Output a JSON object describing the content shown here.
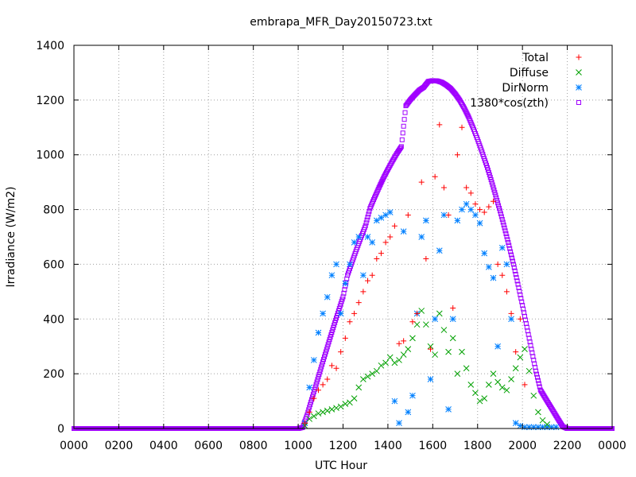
{
  "chart_data": {
    "type": "scatter",
    "title": "embrapa_MFR_Day20150723.txt",
    "xlabel": "UTC Hour",
    "ylabel": "Irradiance (W/m2)",
    "xlim": [
      0,
      24
    ],
    "ylim": [
      0,
      1400
    ],
    "x_tick_values": [
      0,
      2,
      4,
      6,
      8,
      10,
      12,
      14,
      16,
      18,
      20,
      22,
      24
    ],
    "x_tick_labels": [
      "0000",
      "0200",
      "0400",
      "0600",
      "0800",
      "1000",
      "1200",
      "1400",
      "1600",
      "1800",
      "2000",
      "2200",
      "0000"
    ],
    "y_ticks": [
      0,
      200,
      400,
      600,
      800,
      1000,
      1200,
      1400
    ],
    "grid": true,
    "legend_position": "top-right",
    "series": [
      {
        "name": "Total",
        "color": "#ff0000",
        "marker": "plus",
        "x": [
          10.3,
          10.5,
          10.7,
          10.9,
          11.1,
          11.3,
          11.5,
          11.7,
          11.9,
          12.1,
          12.3,
          12.5,
          12.7,
          12.9,
          13.1,
          13.3,
          13.5,
          13.7,
          13.9,
          14.1,
          14.3,
          14.5,
          14.7,
          14.9,
          15.1,
          15.3,
          15.5,
          15.7,
          15.9,
          16.1,
          16.3,
          16.5,
          16.7,
          16.9,
          17.1,
          17.3,
          17.5,
          17.7,
          17.9,
          18.1,
          18.3,
          18.5,
          18.7,
          18.9,
          19.1,
          19.3,
          19.5,
          19.7,
          19.9,
          20.1
        ],
        "y": [
          20,
          60,
          110,
          140,
          160,
          180,
          230,
          220,
          280,
          330,
          390,
          420,
          460,
          500,
          540,
          560,
          620,
          640,
          680,
          700,
          740,
          310,
          320,
          780,
          390,
          420,
          900,
          620,
          290,
          920,
          1110,
          880,
          780,
          440,
          1000,
          1100,
          880,
          860,
          820,
          800,
          790,
          810,
          830,
          600,
          560,
          500,
          420,
          280,
          400,
          160
        ]
      },
      {
        "name": "Diffuse",
        "color": "#00a000",
        "marker": "x",
        "x": [
          10.3,
          10.5,
          10.7,
          10.9,
          11.1,
          11.3,
          11.5,
          11.7,
          11.9,
          12.1,
          12.3,
          12.5,
          12.7,
          12.9,
          13.1,
          13.3,
          13.5,
          13.7,
          13.9,
          14.1,
          14.3,
          14.5,
          14.7,
          14.9,
          15.1,
          15.3,
          15.5,
          15.7,
          15.9,
          16.1,
          16.3,
          16.5,
          16.7,
          16.9,
          17.1,
          17.3,
          17.5,
          17.7,
          17.9,
          18.1,
          18.3,
          18.5,
          18.7,
          18.9,
          19.1,
          19.3,
          19.5,
          19.7,
          19.9,
          20.1,
          20.3,
          20.5,
          20.7,
          20.9,
          21.1
        ],
        "y": [
          10,
          35,
          45,
          55,
          60,
          65,
          70,
          75,
          80,
          90,
          95,
          110,
          150,
          180,
          190,
          200,
          210,
          230,
          240,
          260,
          240,
          250,
          270,
          290,
          330,
          380,
          430,
          380,
          300,
          270,
          420,
          360,
          280,
          330,
          200,
          280,
          220,
          160,
          130,
          100,
          110,
          160,
          200,
          170,
          150,
          140,
          180,
          220,
          260,
          290,
          210,
          120,
          60,
          30,
          15
        ]
      },
      {
        "name": "DirNorm",
        "color": "#0080ff",
        "marker": "star",
        "x": [
          10.3,
          10.5,
          10.7,
          10.9,
          11.1,
          11.3,
          11.5,
          11.7,
          11.9,
          12.1,
          12.3,
          12.5,
          12.7,
          12.9,
          13.1,
          13.3,
          13.5,
          13.7,
          13.9,
          14.1,
          14.3,
          14.5,
          14.7,
          14.9,
          15.1,
          15.3,
          15.5,
          15.7,
          15.9,
          16.1,
          16.3,
          16.5,
          16.7,
          16.9,
          17.1,
          17.3,
          17.5,
          17.7,
          17.9,
          18.1,
          18.3,
          18.5,
          18.7,
          18.9,
          19.1,
          19.3,
          19.5,
          19.7,
          19.9,
          20.1,
          20.3,
          20.5,
          20.7,
          20.9,
          21.1,
          21.3,
          21.5
        ],
        "y": [
          20,
          150,
          250,
          350,
          420,
          480,
          560,
          600,
          420,
          530,
          600,
          680,
          700,
          560,
          700,
          680,
          760,
          770,
          780,
          790,
          100,
          20,
          720,
          60,
          120,
          420,
          700,
          760,
          180,
          400,
          650,
          780,
          70,
          400,
          760,
          800,
          820,
          800,
          780,
          750,
          640,
          590,
          550,
          300,
          660,
          600,
          400,
          20,
          10,
          5,
          5,
          5,
          5,
          5,
          5,
          5,
          5
        ]
      },
      {
        "name": "1380*cos(zth)",
        "color": "#a000ff",
        "marker": "square",
        "x": [
          0,
          1,
          2,
          3,
          4,
          5,
          6,
          7,
          8,
          9,
          10,
          10.2,
          10.4,
          10.6,
          10.8,
          11.0,
          11.2,
          11.4,
          11.6,
          11.8,
          12.0,
          12.2,
          12.4,
          12.6,
          12.8,
          13.0,
          13.2,
          13.4,
          13.6,
          13.8,
          14.0,
          14.2,
          14.4,
          14.6,
          14.8,
          15.0,
          15.2,
          15.4,
          15.6,
          15.8,
          16.0,
          16.2,
          16.4,
          16.6,
          16.8,
          17.0,
          17.2,
          17.4,
          17.6,
          17.8,
          18.0,
          18.2,
          18.4,
          18.6,
          18.8,
          19.0,
          19.2,
          19.4,
          19.6,
          19.8,
          20.0,
          20.2,
          20.4,
          20.6,
          20.8,
          21.0,
          21.2,
          21.4,
          21.6,
          21.8,
          22.0,
          22.2,
          22.4,
          23,
          24
        ],
        "y": [
          0,
          0,
          0,
          0,
          0,
          0,
          0,
          0,
          0,
          0,
          0,
          4,
          50,
          106,
          161,
          216,
          271,
          325,
          378,
          430,
          481,
          560,
          608,
          654,
          698,
          741,
          804,
          843,
          880,
          915,
          947,
          977,
          1005,
          1030,
          1179,
          1201,
          1219,
          1236,
          1247,
          1268,
          1271,
          1270,
          1265,
          1255,
          1242,
          1223,
          1200,
          1171,
          1138,
          1099,
          1056,
          1010,
          962,
          909,
          853,
          795,
          733,
          669,
          600,
          527,
          450,
          370,
          290,
          210,
          141,
          114,
          87,
          60,
          33,
          7,
          0,
          0,
          0,
          0,
          0
        ]
      }
    ]
  }
}
